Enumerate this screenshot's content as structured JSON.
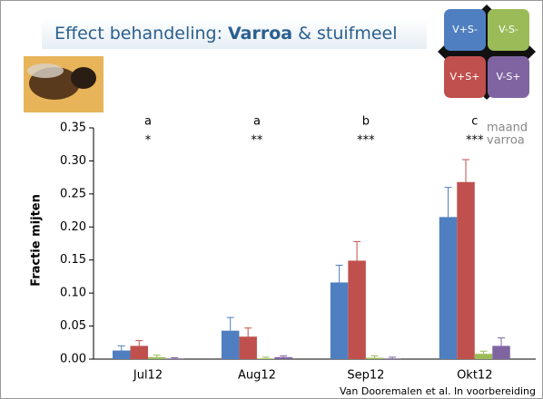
{
  "chart_data": {
    "type": "bar",
    "title_parts": [
      "Effect behandeling:",
      "Varroa",
      "& stuifmeel"
    ],
    "y_label": "Fractie mijten",
    "categories": [
      "Jul12",
      "Aug12",
      "Sep12",
      "Okt12"
    ],
    "series": [
      {
        "name": "V+S-",
        "color": "#4f7fc0",
        "values": [
          0.013,
          0.043,
          0.116,
          0.215
        ],
        "errors": [
          0.007,
          0.02,
          0.026,
          0.045
        ]
      },
      {
        "name": "V+S+",
        "color": "#c0504d",
        "values": [
          0.02,
          0.034,
          0.149,
          0.268
        ],
        "errors": [
          0.008,
          0.013,
          0.029,
          0.034
        ]
      },
      {
        "name": "V-S-",
        "color": "#9bbb59",
        "values": [
          0.003,
          0.001,
          0.002,
          0.008
        ],
        "errors": [
          0.003,
          0.002,
          0.003,
          0.004
        ]
      },
      {
        "name": "V-S+",
        "color": "#8064a2",
        "values": [
          0.001,
          0.003,
          0.001,
          0.02
        ],
        "errors": [
          0.001,
          0.002,
          0.002,
          0.012
        ]
      }
    ],
    "letters": [
      "a",
      "a",
      "b",
      "c"
    ],
    "stars": [
      "*",
      "**",
      "***",
      "***"
    ],
    "annotation_labels": [
      "maand",
      "varroa"
    ],
    "ylim": [
      0,
      0.35
    ],
    "yticks": [
      {
        "value": 0,
        "label": "0.00"
      },
      {
        "value": 0.05,
        "label": "0.05"
      },
      {
        "value": 0.1,
        "label": "0.10"
      },
      {
        "value": 0.15,
        "label": "0.15"
      },
      {
        "value": 0.2,
        "label": "0.20"
      },
      {
        "value": 0.25,
        "label": "0.25"
      },
      {
        "value": 0.3,
        "label": "0.30"
      },
      {
        "value": 0.35,
        "label": "0.35"
      }
    ],
    "source": "Van Dooremalen et al. In voorbereiding"
  }
}
